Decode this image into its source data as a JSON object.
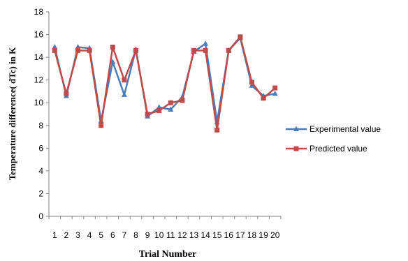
{
  "chart_data": {
    "type": "line",
    "xlabel": "Trial Number",
    "ylabel": "Temperature difference( dTc) in K",
    "ylim": [
      0,
      18
    ],
    "ystep": 2,
    "grid": false,
    "legend_position": "right",
    "categories": [
      "1",
      "2",
      "3",
      "4",
      "5",
      "6",
      "7",
      "8",
      "9",
      "10",
      "11",
      "12",
      "13",
      "14",
      "15",
      "16",
      "17",
      "18",
      "19",
      "20"
    ],
    "series": [
      {
        "name": "Experimental value",
        "color": "#4a7ebb",
        "marker": "triangle",
        "values": [
          14.9,
          10.6,
          14.9,
          14.8,
          8.4,
          13.6,
          10.7,
          14.7,
          8.8,
          9.6,
          9.4,
          10.5,
          14.5,
          15.2,
          8.3,
          14.6,
          15.7,
          11.5,
          10.6,
          10.8
        ]
      },
      {
        "name": "Predicted value",
        "color": "#be4b48",
        "marker": "square",
        "values": [
          14.6,
          10.8,
          14.6,
          14.6,
          8.0,
          14.9,
          12.0,
          14.6,
          9.0,
          9.3,
          10.0,
          10.2,
          14.6,
          14.6,
          7.6,
          14.6,
          15.8,
          11.8,
          10.4,
          11.3
        ]
      }
    ]
  }
}
